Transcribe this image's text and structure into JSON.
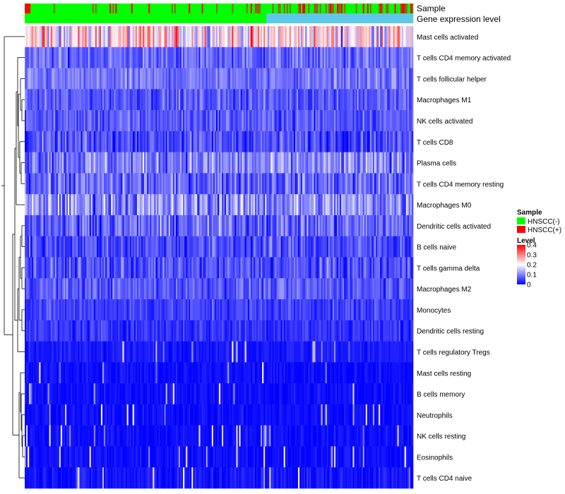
{
  "chart_data": {
    "type": "heatmap",
    "title": "",
    "annotation_tracks": [
      {
        "name": "Sample",
        "kind": "categorical"
      },
      {
        "name": "Gene expression level",
        "kind": "continuous"
      }
    ],
    "rows": [
      {
        "label": "Mast cells activated",
        "mean": 0.22,
        "spread": 0.14
      },
      {
        "label": "T cells CD4 memory activated",
        "mean": 0.08,
        "spread": 0.06
      },
      {
        "label": "T cells follicular helper",
        "mean": 0.09,
        "spread": 0.05
      },
      {
        "label": "Macrophages M1",
        "mean": 0.07,
        "spread": 0.05
      },
      {
        "label": "NK cells activated",
        "mean": 0.07,
        "spread": 0.05
      },
      {
        "label": "T cells CD8",
        "mean": 0.06,
        "spread": 0.06
      },
      {
        "label": "Plasma cells",
        "mean": 0.1,
        "spread": 0.08
      },
      {
        "label": "T cells CD4 memory resting",
        "mean": 0.08,
        "spread": 0.07
      },
      {
        "label": "Macrophages M0",
        "mean": 0.11,
        "spread": 0.09
      },
      {
        "label": "Dendritic cells activated",
        "mean": 0.08,
        "spread": 0.07
      },
      {
        "label": "B cells naive",
        "mean": 0.06,
        "spread": 0.06
      },
      {
        "label": "T cells gamma delta",
        "mean": 0.06,
        "spread": 0.06
      },
      {
        "label": "Macrophages M2",
        "mean": 0.07,
        "spread": 0.05
      },
      {
        "label": "Monocytes",
        "mean": 0.05,
        "spread": 0.04
      },
      {
        "label": "Dendritic cells resting",
        "mean": 0.04,
        "spread": 0.04
      },
      {
        "label": "T cells regulatory  Tregs",
        "mean": 0.02,
        "spread": 0.02
      },
      {
        "label": "Mast cells resting",
        "mean": 0.01,
        "spread": 0.02
      },
      {
        "label": "B cells memory",
        "mean": 0.01,
        "spread": 0.02
      },
      {
        "label": "Neutrophils",
        "mean": 0.01,
        "spread": 0.02
      },
      {
        "label": "NK cells resting",
        "mean": 0.01,
        "spread": 0.02
      },
      {
        "label": "Eosinophils",
        "mean": 0.01,
        "spread": 0.02
      },
      {
        "label": "T cells CD4 naive",
        "mean": 0.015,
        "spread": 0.03
      }
    ],
    "n_samples": 270,
    "color_scale": {
      "title": "Level",
      "min": 0,
      "max": 0.4,
      "ticks": [
        "0.4",
        "0.3",
        "0.2",
        "0.1",
        "0"
      ],
      "low_color": "#0000ff",
      "mid_color": "#ffffff",
      "high_color": "#ff0000"
    },
    "legend": {
      "sample_title": "Sample",
      "sample_entries": [
        {
          "label": "HNSCC(-)",
          "color": "#00ff00"
        },
        {
          "label": "HNSCC(+)",
          "color": "#ff0000"
        }
      ],
      "placement": "right"
    },
    "annotation_colors": {
      "sample_negative": "#00ff00",
      "sample_positive": "#ff0000",
      "sample_mixed": "#8b6914",
      "expression_low": "#00ff00",
      "expression_high": "#5ec8e8"
    }
  }
}
